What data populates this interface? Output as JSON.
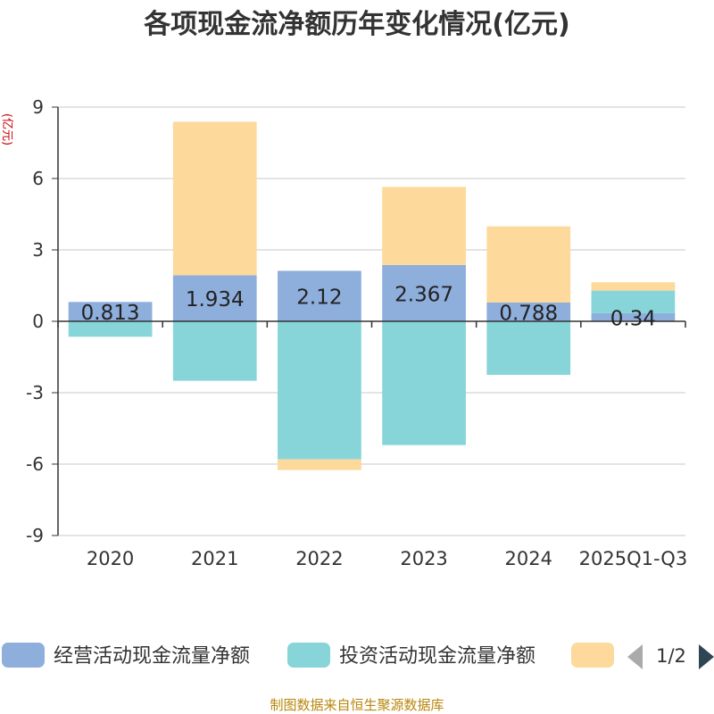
{
  "chart_data": {
    "type": "bar",
    "stacked": true,
    "title": "各项现金流净额历年变化情况(亿元)",
    "ylabel": "(亿元)",
    "xlabel": "",
    "ylim": [
      -9,
      9
    ],
    "yticks": [
      9,
      6,
      3,
      0,
      -3,
      -6,
      -9
    ],
    "categories": [
      "2020",
      "2021",
      "2022",
      "2023",
      "2024",
      "2025Q1-Q3"
    ],
    "series": [
      {
        "name": "经营活动现金流量净额",
        "color": "#8eaedc",
        "values": [
          0.813,
          1.934,
          2.12,
          2.367,
          0.788,
          0.34
        ],
        "labels": [
          "0.813",
          "1.934",
          "2.12",
          "2.367",
          "0.788",
          "0.34"
        ]
      },
      {
        "name": "投资活动现金流量净额",
        "color": "#87d5d9",
        "values": [
          -0.65,
          -2.5,
          -5.8,
          -5.2,
          -2.25,
          0.95
        ]
      },
      {
        "name": "",
        "color": "#fdd99b",
        "values": [
          0,
          6.45,
          -0.45,
          3.28,
          3.2,
          0.35
        ]
      }
    ],
    "legend": {
      "position": "bottom",
      "page": "1/2"
    }
  },
  "source": "制图数据来自恒生聚源数据库"
}
